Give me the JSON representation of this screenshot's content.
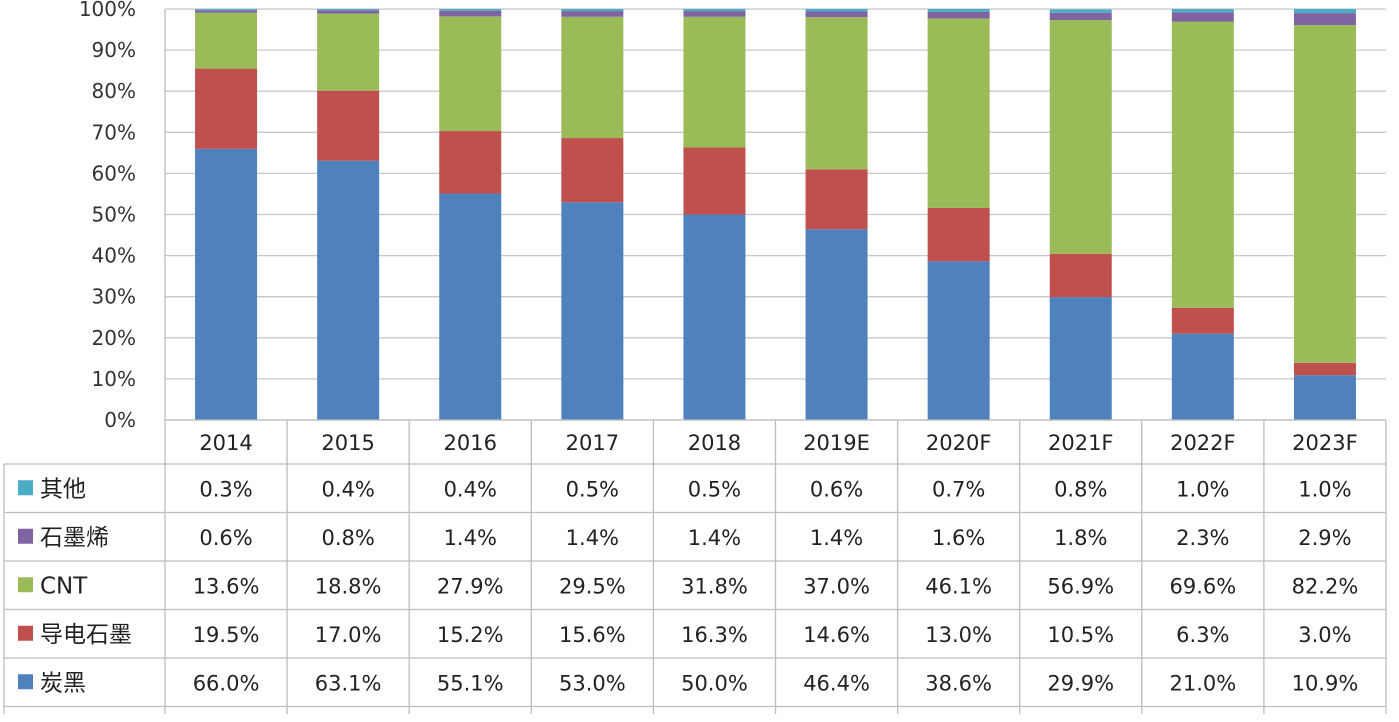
{
  "chart_data": {
    "type": "bar",
    "stacked": true,
    "title": "",
    "xlabel": "",
    "ylabel": "",
    "ylim": [
      0,
      100
    ],
    "y_ticks": [
      "0%",
      "10%",
      "20%",
      "30%",
      "40%",
      "50%",
      "60%",
      "70%",
      "80%",
      "90%",
      "100%"
    ],
    "categories": [
      "2014",
      "2015",
      "2016",
      "2017",
      "2018",
      "2019E",
      "2020F",
      "2021F",
      "2022F",
      "2023F"
    ],
    "series": [
      {
        "name": "炭黑",
        "color": "#4F81BD",
        "values": [
          66.0,
          63.1,
          55.1,
          53.0,
          50.0,
          46.4,
          38.6,
          29.9,
          21.0,
          10.9
        ],
        "labels": [
          "66.0%",
          "63.1%",
          "55.1%",
          "53.0%",
          "50.0%",
          "46.4%",
          "38.6%",
          "29.9%",
          "21.0%",
          "10.9%"
        ]
      },
      {
        "name": "导电石墨",
        "color": "#C0504D",
        "values": [
          19.5,
          17.0,
          15.2,
          15.6,
          16.3,
          14.6,
          13.0,
          10.5,
          6.3,
          3.0
        ],
        "labels": [
          "19.5%",
          "17.0%",
          "15.2%",
          "15.6%",
          "16.3%",
          "14.6%",
          "13.0%",
          "10.5%",
          "6.3%",
          "3.0%"
        ]
      },
      {
        "name": "CNT",
        "color": "#9BBB59",
        "values": [
          13.6,
          18.8,
          27.9,
          29.5,
          31.8,
          37.0,
          46.1,
          56.9,
          69.6,
          82.2
        ],
        "labels": [
          "13.6%",
          "18.8%",
          "27.9%",
          "29.5%",
          "31.8%",
          "37.0%",
          "46.1%",
          "56.9%",
          "69.6%",
          "82.2%"
        ]
      },
      {
        "name": "石墨烯",
        "color": "#8064A2",
        "values": [
          0.6,
          0.8,
          1.4,
          1.4,
          1.4,
          1.4,
          1.6,
          1.8,
          2.3,
          2.9
        ],
        "labels": [
          "0.6%",
          "0.8%",
          "1.4%",
          "1.4%",
          "1.4%",
          "1.4%",
          "1.6%",
          "1.8%",
          "2.3%",
          "2.9%"
        ]
      },
      {
        "name": "其他",
        "color": "#4BACC6",
        "values": [
          0.3,
          0.4,
          0.4,
          0.5,
          0.5,
          0.6,
          0.7,
          0.8,
          1.0,
          1.0
        ],
        "labels": [
          "0.3%",
          "0.4%",
          "0.4%",
          "0.5%",
          "0.5%",
          "0.6%",
          "0.7%",
          "0.8%",
          "1.0%",
          "1.0%"
        ]
      }
    ],
    "table_row_order": [
      "其他",
      "石墨烯",
      "CNT",
      "导电石墨",
      "炭黑"
    ],
    "grid": true,
    "legend": "data-table-left"
  }
}
